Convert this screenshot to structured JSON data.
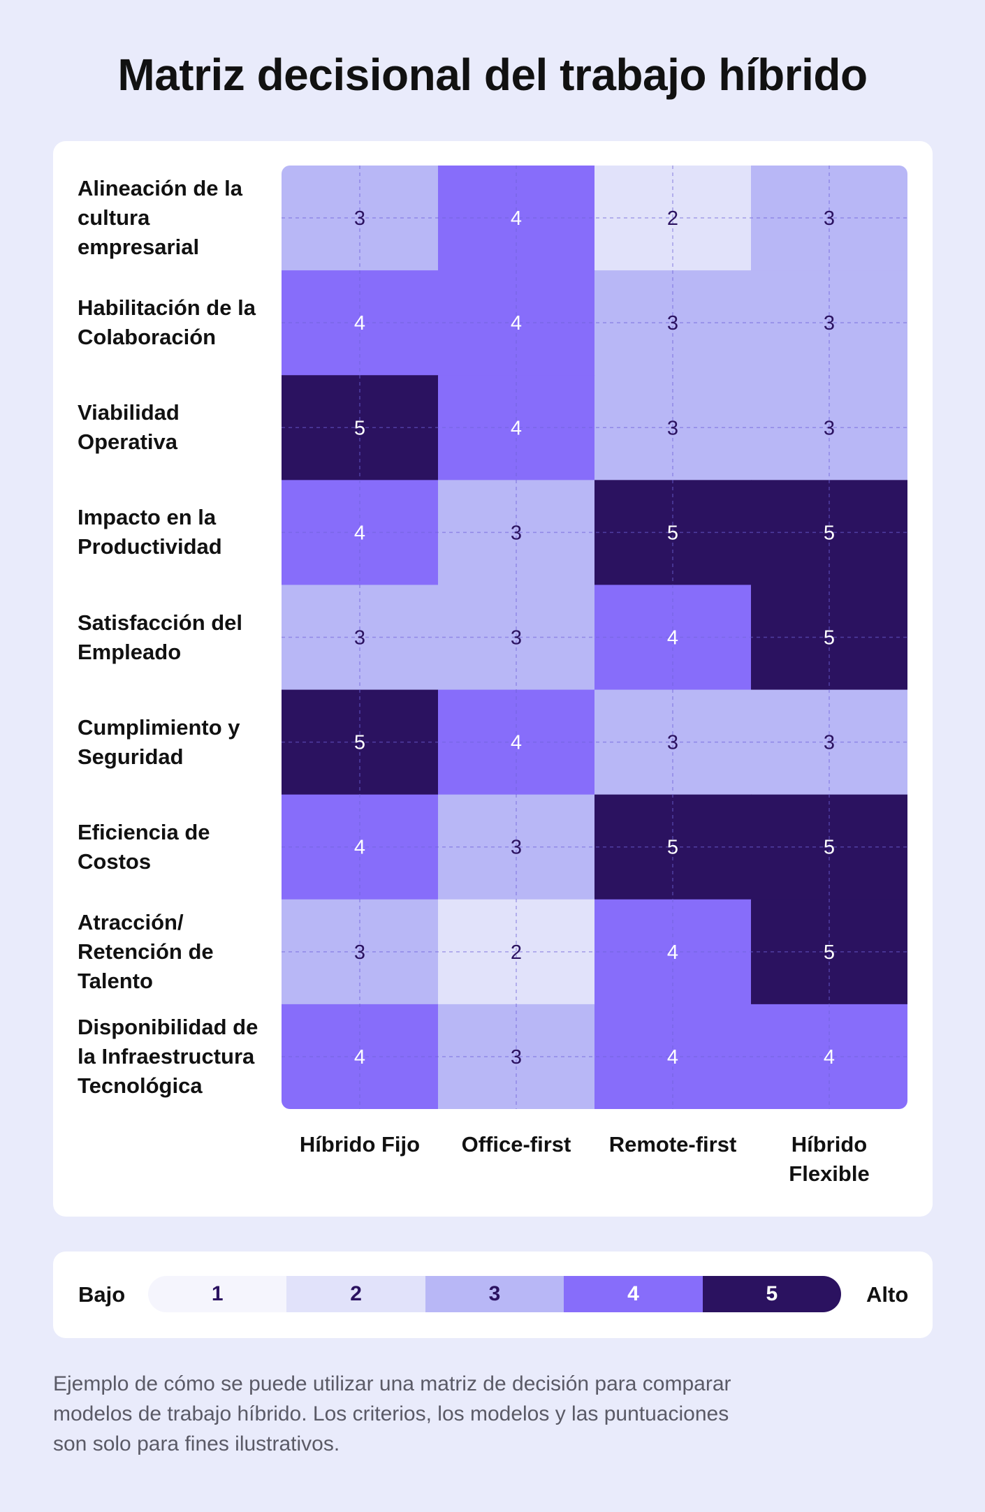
{
  "title": "Matriz decisional del trabajo híbrido",
  "chart_data": {
    "type": "heatmap",
    "columns": [
      "Híbrido Fijo",
      "Office-first",
      "Remote-first",
      "Híbrido\nFlexible"
    ],
    "rows": [
      "Alineación de la\ncultura\nempresarial",
      "Habilitación de la\nColaboración",
      "Viabilidad\nOperativa",
      "Impacto en la\nProductividad",
      "Satisfacción del\nEmpleado",
      "Cumplimiento y\nSeguridad",
      "Eficiencia de\nCostos",
      "Atracción/\nRetención de\nTalento",
      "Disponibilidad de\nla Infraestructura\nTecnológica"
    ],
    "values": [
      [
        3,
        4,
        2,
        3
      ],
      [
        4,
        4,
        3,
        3
      ],
      [
        5,
        4,
        3,
        3
      ],
      [
        4,
        3,
        5,
        5
      ],
      [
        3,
        3,
        4,
        5
      ],
      [
        5,
        4,
        3,
        3
      ],
      [
        4,
        3,
        5,
        5
      ],
      [
        3,
        2,
        4,
        5
      ],
      [
        4,
        3,
        4,
        4
      ]
    ],
    "scale": [
      1,
      2,
      3,
      4,
      5
    ],
    "colors": {
      "1": "#f5f5fd",
      "2": "#e1e2fa",
      "3": "#b8b7f6",
      "4": "#876dfa",
      "5": "#2b1260"
    },
    "text_colors": {
      "1": "#2b1260",
      "2": "#2b1260",
      "3": "#2b1260",
      "4": "#ffffff",
      "5": "#ffffff"
    },
    "grid": true
  },
  "legend": {
    "low_label": "Bajo",
    "high_label": "Alto",
    "values": [
      "1",
      "2",
      "3",
      "4",
      "5"
    ]
  },
  "caption": "Ejemplo de cómo se puede utilizar una matriz de decisión para comparar modelos de trabajo híbrido. Los criterios, los modelos y las puntuaciones son solo para fines ilustrativos."
}
